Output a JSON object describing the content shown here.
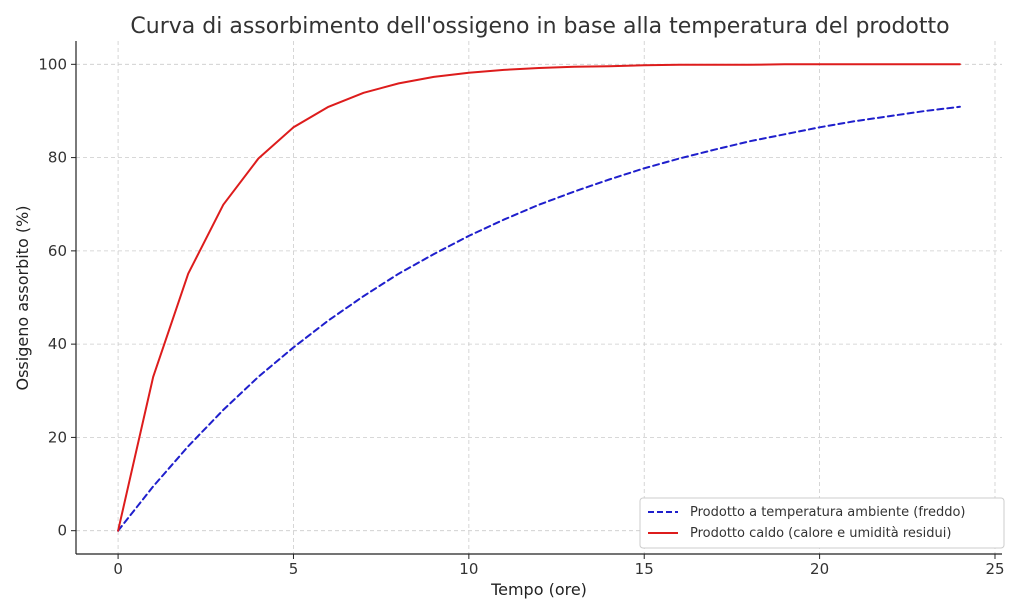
{
  "chart_data": {
    "type": "line",
    "title": "Curva di assorbimento dell'ossigeno in base alla temperatura del prodotto",
    "xlabel": "Tempo (ore)",
    "ylabel": "Ossigeno assorbito (%)",
    "xlim": [
      -1.2,
      25.2
    ],
    "ylim": [
      -5,
      105
    ],
    "xticks": [
      0,
      5,
      10,
      15,
      20,
      25
    ],
    "yticks": [
      0,
      20,
      40,
      60,
      80,
      100
    ],
    "grid": true,
    "legend_position": "bottom-right",
    "x": [
      0,
      1,
      2,
      3,
      4,
      5,
      6,
      7,
      8,
      9,
      10,
      11,
      12,
      13,
      14,
      15,
      16,
      17,
      18,
      19,
      20,
      21,
      22,
      23,
      24
    ],
    "series": [
      {
        "name": "Prodotto a temperatura ambiente (freddo)",
        "color": "#1f1fcc",
        "style": "dashed",
        "values": [
          0,
          9.5,
          18.1,
          25.9,
          33.0,
          39.3,
          45.1,
          50.3,
          55.1,
          59.3,
          63.2,
          66.7,
          69.9,
          72.7,
          75.3,
          77.7,
          79.8,
          81.7,
          83.5,
          85.0,
          86.5,
          87.8,
          88.9,
          90.0,
          90.9
        ]
      },
      {
        "name": "Prodotto caldo (calore e umidità residui)",
        "color": "#dd1c1c",
        "style": "solid",
        "values": [
          0,
          33.0,
          55.1,
          69.9,
          79.8,
          86.5,
          90.9,
          93.9,
          95.9,
          97.3,
          98.2,
          98.8,
          99.2,
          99.5,
          99.6,
          99.8,
          99.9,
          99.9,
          99.9,
          100.0,
          100.0,
          100.0,
          100.0,
          100.0,
          100.0
        ]
      }
    ]
  }
}
